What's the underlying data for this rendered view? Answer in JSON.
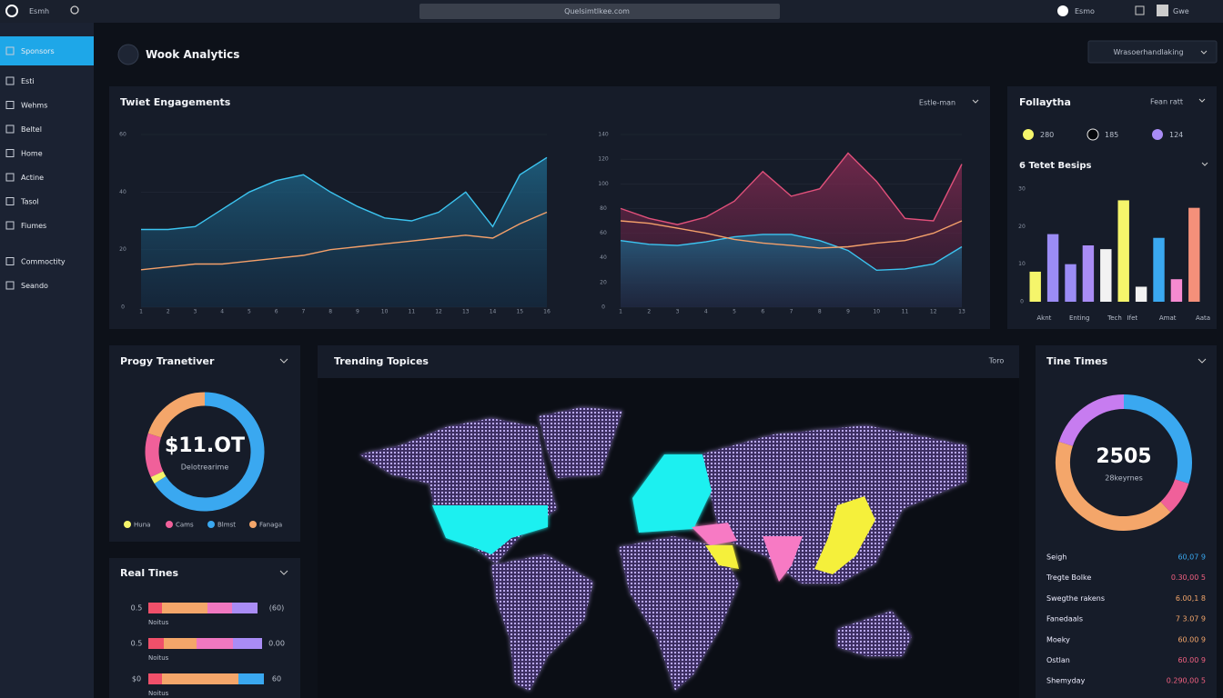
{
  "topbar": {
    "brand": "Esmh",
    "url": "Quelsimtlkee.com",
    "user": "Esmo",
    "profile": "Gwe"
  },
  "sidebar": {
    "active": 0,
    "items": [
      "Sponsors",
      "Esti",
      "Wehms",
      "Beltel",
      "Home",
      "Actine",
      "Tasol",
      "Fiumes",
      "Commoctity",
      "Seando"
    ]
  },
  "header": {
    "title": "Wook Analytics",
    "dropdown": "Wrasoerhandlaking"
  },
  "engagements": {
    "title": "Twiet Engagements",
    "dropdown": "Estle-man",
    "charts": [
      {
        "type": "area",
        "categories": [
          "1",
          "2",
          "3",
          "4",
          "5",
          "6",
          "7",
          "8",
          "9",
          "10",
          "11",
          "12",
          "13",
          "14",
          "15",
          "16"
        ],
        "ylim": [
          0,
          60
        ],
        "yticks": [
          0,
          20,
          40,
          60
        ],
        "grid": true,
        "series": [
          {
            "color": "#3cc4f0",
            "fill": true,
            "values": [
              27,
              27,
              28,
              34,
              40,
              44,
              46,
              40,
              35,
              31,
              30,
              33,
              40,
              28,
              46,
              52
            ]
          },
          {
            "color": "#f4a06a",
            "fill": false,
            "values": [
              13,
              14,
              15,
              15,
              16,
              17,
              18,
              20,
              21,
              22,
              23,
              24,
              25,
              24,
              29,
              33
            ]
          }
        ]
      },
      {
        "type": "area",
        "categories": [
          "1",
          "2",
          "3",
          "4",
          "5",
          "6",
          "7",
          "8",
          "9",
          "10",
          "11",
          "12",
          "13"
        ],
        "ylim": [
          0,
          140
        ],
        "yticks": [
          0,
          20,
          40,
          60,
          80,
          100,
          120,
          140
        ],
        "grid": true,
        "series": [
          {
            "color": "#e0507a",
            "fill": true,
            "values": [
              80,
              72,
              67,
              73,
              86,
              110,
              90,
              96,
              125,
              102,
              72,
              70,
              116
            ]
          },
          {
            "color": "#3cc4f0",
            "fill": true,
            "values": [
              54,
              51,
              50,
              53,
              57,
              59,
              59,
              54,
              46,
              30,
              31,
              35,
              49
            ]
          },
          {
            "color": "#f4a06a",
            "fill": false,
            "values": [
              70,
              68,
              64,
              60,
              55,
              52,
              50,
              48,
              49,
              52,
              54,
              60,
              70
            ]
          }
        ]
      }
    ]
  },
  "followers": {
    "title": "Follaytha",
    "dropdown": "Fean ratt",
    "legend": [
      {
        "color": "#f5f56b",
        "value": 280
      },
      {
        "color": "#05070b",
        "value": 185
      },
      {
        "color": "#a98cf5",
        "value": 124
      }
    ],
    "chart": {
      "type": "bar",
      "title": "6 Tetet Besips",
      "categories": [
        "Aknt",
        null,
        "Enting",
        null,
        "Tech",
        "Ifet",
        null,
        "Amat",
        null,
        "Aata"
      ],
      "values": [
        8,
        18,
        10,
        15,
        14,
        27,
        4,
        17,
        6,
        25
      ],
      "colors": [
        "#f5f56b",
        "#9b8cf5",
        "#9b8cf5",
        "#a98cf5",
        "#f2f2f2",
        "#f5f56b",
        "#f2f2f2",
        "#3aa8f0",
        "#f58ad0",
        "#f4907a"
      ],
      "ylim": [
        0,
        30
      ],
      "yticks": [
        0,
        10,
        20,
        30
      ]
    }
  },
  "progress": {
    "title": "Progy Tranetiver",
    "chart": {
      "type": "pie",
      "donut": true,
      "center": "$11.OT",
      "center_sub": "Delotrearime",
      "categories": [
        "Huna",
        "Cams",
        "Blmst",
        "Fanaga"
      ],
      "values": [
        2,
        12,
        66,
        20
      ],
      "colors": [
        "#f5f56b",
        "#f0609a",
        "#3aa8f0",
        "#f4a66a"
      ],
      "order": [
        2,
        0,
        1,
        3
      ]
    }
  },
  "realtime": {
    "title": "Real Tines",
    "rows": [
      {
        "label": "0.5",
        "right": "(60)",
        "sub": "Noitus",
        "segments": [
          {
            "color": "#f0506a",
            "value": 15
          },
          {
            "color": "#f4a66a",
            "value": 50
          },
          {
            "color": "#f078c0",
            "value": 27
          },
          {
            "color": "#a98cf5",
            "value": 28
          }
        ]
      },
      {
        "label": "0.5",
        "right": "0.00",
        "sub": "Noitus",
        "segments": [
          {
            "color": "#f0506a",
            "value": 17
          },
          {
            "color": "#f4a66a",
            "value": 36
          },
          {
            "color": "#f078c0",
            "value": 40
          },
          {
            "color": "#a98cf5",
            "value": 32
          }
        ]
      },
      {
        "label": "$0",
        "right": "60",
        "sub": "Noitus",
        "segments": [
          {
            "color": "#f0506a",
            "value": 15
          },
          {
            "color": "#f4a66a",
            "value": 84
          },
          {
            "color": "#3aa8f0",
            "value": 28
          }
        ]
      }
    ]
  },
  "trending": {
    "title": "Trending Topices",
    "button": "Toro"
  },
  "times": {
    "title": "Tine Times",
    "chart": {
      "type": "pie",
      "donut": true,
      "center": "2505",
      "center_sub": "28keyrnes",
      "values": [
        30,
        8,
        42,
        20
      ],
      "colors": [
        "#3aa8f0",
        "#f0609a",
        "#f4a66a",
        "#c77cf0"
      ]
    },
    "list": [
      {
        "label": "Seigh",
        "value": "60,07 9",
        "color": "#3aa8f0"
      },
      {
        "label": "Tregte Bolke",
        "value": "0.30,00 5",
        "color": "#f06080"
      },
      {
        "label": "Swegthe rakens",
        "value": "6.00,1 8",
        "color": "#f4a66a"
      },
      {
        "label": "Fanedaals",
        "value": "7 3.07 9",
        "color": "#f4a66a"
      },
      {
        "label": "Moeky",
        "value": "60.00 9",
        "color": "#f4a66a"
      },
      {
        "label": "Ostlan",
        "value": "60.00 9",
        "color": "#f06080"
      },
      {
        "label": "Shemyday",
        "value": "0.290,00 5",
        "color": "#f06080"
      }
    ]
  }
}
